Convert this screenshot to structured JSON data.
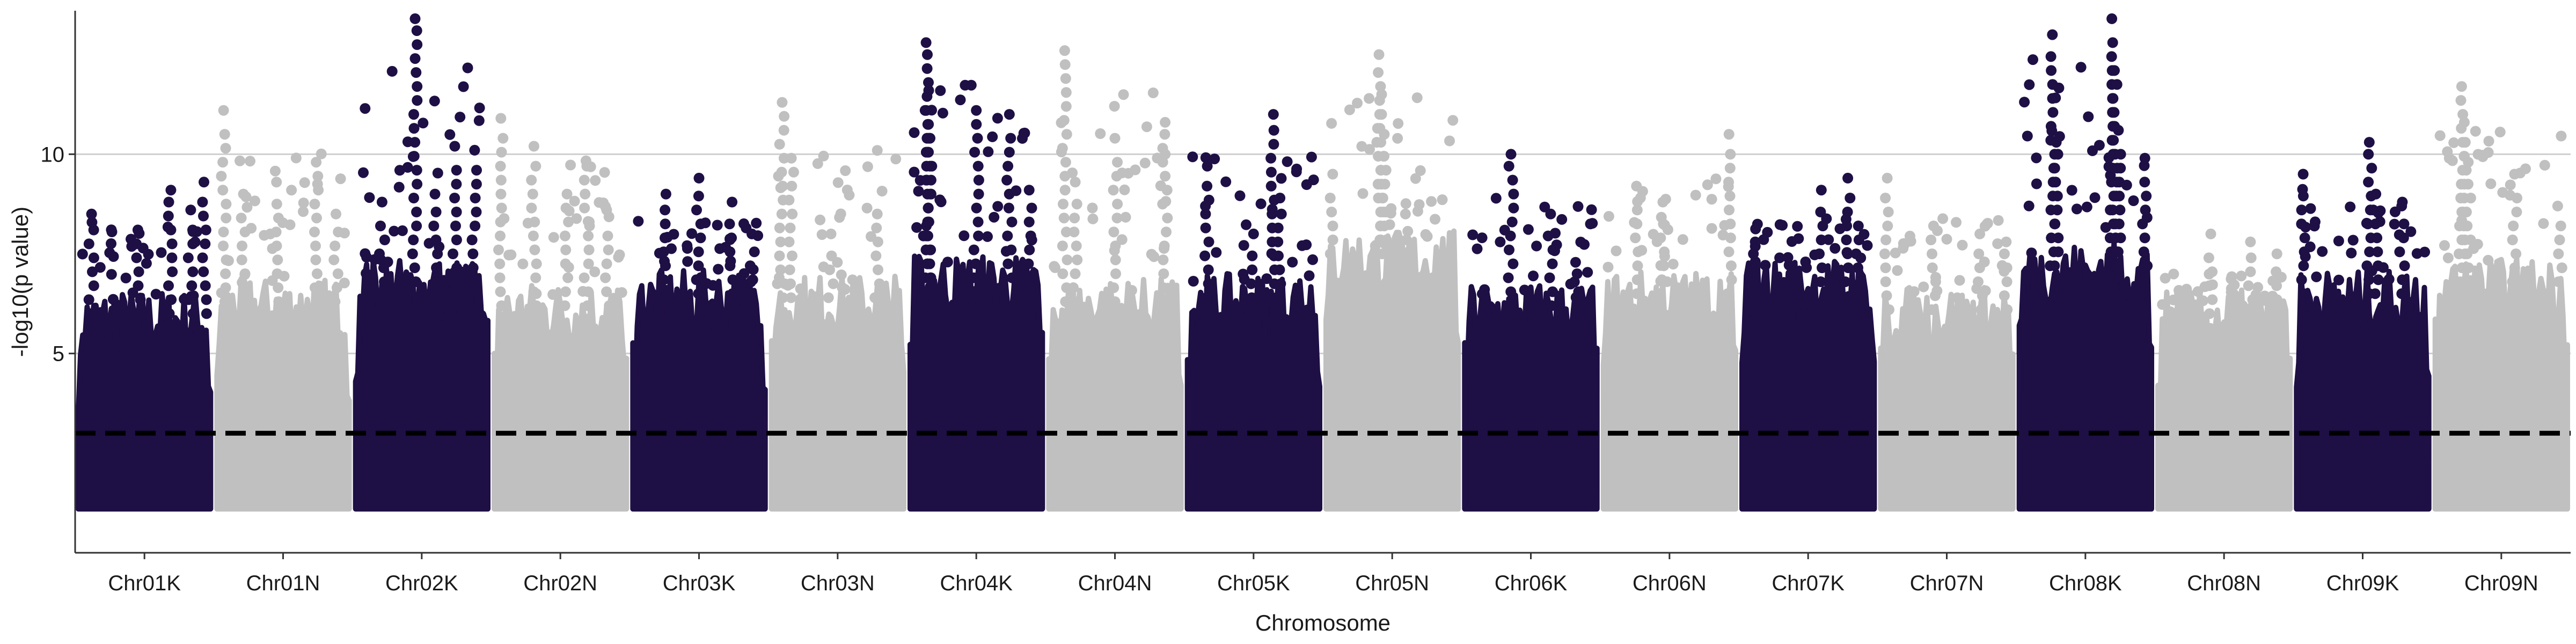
{
  "chart_data": {
    "type": "scatter",
    "xlabel": "Chromosome",
    "ylabel": "-log10(p value)",
    "ylim": [
      0,
      13.6
    ],
    "yticks": [
      5,
      10
    ],
    "categories": [
      "Chr01K",
      "Chr01N",
      "Chr02K",
      "Chr02N",
      "Chr03K",
      "Chr03N",
      "Chr04K",
      "Chr04N",
      "Chr05K",
      "Chr05N",
      "Chr06K",
      "Chr06N",
      "Chr07K",
      "Chr07N",
      "Chr08K",
      "Chr08N",
      "Chr09K",
      "Chr09N"
    ],
    "threshold": 3.0,
    "grid": "horizontal-major",
    "legend": "none",
    "colors": {
      "odd": "#1e0f45",
      "even": "#c0c0c0",
      "threshold": "#000000",
      "grid": "#cfcfcf",
      "axis": "#333333"
    },
    "floor": 1.1,
    "series": [
      {
        "category": "Chr01K",
        "max_y": 9.3,
        "dense_top": 6.0,
        "peaks": [
          {
            "x": 0.1,
            "y": 8.5
          },
          {
            "x": 0.45,
            "y": 8.1
          },
          {
            "x": 0.7,
            "y": 9.1
          },
          {
            "x": 0.85,
            "y": 8.6
          },
          {
            "x": 0.95,
            "y": 9.3
          }
        ]
      },
      {
        "category": "Chr01N",
        "max_y": 11.1,
        "dense_top": 6.3,
        "peaks": [
          {
            "x": 0.05,
            "y": 11.1
          },
          {
            "x": 0.2,
            "y": 9.0
          },
          {
            "x": 0.45,
            "y": 9.3
          },
          {
            "x": 0.75,
            "y": 9.8
          },
          {
            "x": 0.9,
            "y": 8.5
          }
        ]
      },
      {
        "category": "Chr02K",
        "max_y": 13.4,
        "dense_top": 6.8,
        "peaks": [
          {
            "x": 0.2,
            "y": 8.8
          },
          {
            "x": 0.45,
            "y": 13.4
          },
          {
            "x": 0.6,
            "y": 9.0
          },
          {
            "x": 0.75,
            "y": 10.2
          },
          {
            "x": 0.9,
            "y": 10.1
          }
        ]
      },
      {
        "category": "Chr02N",
        "max_y": 10.9,
        "dense_top": 6.2,
        "peaks": [
          {
            "x": 0.05,
            "y": 10.9
          },
          {
            "x": 0.3,
            "y": 10.2
          },
          {
            "x": 0.55,
            "y": 9.0
          },
          {
            "x": 0.7,
            "y": 9.7
          },
          {
            "x": 0.85,
            "y": 8.6
          }
        ]
      },
      {
        "category": "Chr03K",
        "max_y": 9.4,
        "dense_top": 6.5,
        "peaks": [
          {
            "x": 0.25,
            "y": 9.0
          },
          {
            "x": 0.5,
            "y": 9.4
          },
          {
            "x": 0.75,
            "y": 8.8
          },
          {
            "x": 0.9,
            "y": 8.0
          }
        ]
      },
      {
        "category": "Chr03N",
        "max_y": 11.3,
        "dense_top": 6.4,
        "peaks": [
          {
            "x": 0.08,
            "y": 11.3
          },
          {
            "x": 0.15,
            "y": 9.9
          },
          {
            "x": 0.45,
            "y": 8.0
          },
          {
            "x": 0.8,
            "y": 8.5
          }
        ]
      },
      {
        "category": "Chr04K",
        "max_y": 12.8,
        "dense_top": 6.9,
        "peaks": [
          {
            "x": 0.12,
            "y": 12.8
          },
          {
            "x": 0.14,
            "y": 11.6
          },
          {
            "x": 0.15,
            "y": 10.4
          },
          {
            "x": 0.5,
            "y": 11.1
          },
          {
            "x": 0.75,
            "y": 11.0
          },
          {
            "x": 0.9,
            "y": 9.1
          }
        ]
      },
      {
        "category": "Chr04N",
        "max_y": 12.6,
        "dense_top": 6.3,
        "peaks": [
          {
            "x": 0.12,
            "y": 12.6
          },
          {
            "x": 0.2,
            "y": 9.3
          },
          {
            "x": 0.5,
            "y": 10.4
          },
          {
            "x": 0.88,
            "y": 10.8
          }
        ]
      },
      {
        "category": "Chr05K",
        "max_y": 11.0,
        "dense_top": 6.4,
        "peaks": [
          {
            "x": 0.15,
            "y": 9.7
          },
          {
            "x": 0.5,
            "y": 8.0
          },
          {
            "x": 0.65,
            "y": 11.0
          },
          {
            "x": 0.7,
            "y": 8.9
          }
        ]
      },
      {
        "category": "Chr05N",
        "max_y": 12.5,
        "dense_top": 7.5,
        "peaks": [
          {
            "x": 0.05,
            "y": 9.5
          },
          {
            "x": 0.4,
            "y": 12.5
          },
          {
            "x": 0.42,
            "y": 11.5
          },
          {
            "x": 0.44,
            "y": 10.5
          },
          {
            "x": 0.6,
            "y": 8.5
          }
        ]
      },
      {
        "category": "Chr06K",
        "max_y": 10.0,
        "dense_top": 6.2,
        "peaks": [
          {
            "x": 0.35,
            "y": 10.0
          },
          {
            "x": 0.65,
            "y": 8.5
          },
          {
            "x": 0.85,
            "y": 7.0
          }
        ]
      },
      {
        "category": "Chr06N",
        "max_y": 10.5,
        "dense_top": 6.5,
        "peaks": [
          {
            "x": 0.25,
            "y": 9.2
          },
          {
            "x": 0.45,
            "y": 8.8
          },
          {
            "x": 0.95,
            "y": 10.5
          }
        ]
      },
      {
        "category": "Chr07K",
        "max_y": 9.4,
        "dense_top": 6.8,
        "peaks": [
          {
            "x": 0.1,
            "y": 7.8
          },
          {
            "x": 0.8,
            "y": 9.4
          },
          {
            "x": 0.6,
            "y": 9.1
          },
          {
            "x": 0.88,
            "y": 8.2
          }
        ]
      },
      {
        "category": "Chr07N",
        "max_y": 9.4,
        "dense_top": 6.1,
        "peaks": [
          {
            "x": 0.05,
            "y": 9.4
          },
          {
            "x": 0.4,
            "y": 8.2
          },
          {
            "x": 0.75,
            "y": 8.0
          },
          {
            "x": 0.95,
            "y": 7.8
          }
        ]
      },
      {
        "category": "Chr08K",
        "max_y": 13.4,
        "dense_top": 7.2,
        "peaks": [
          {
            "x": 0.25,
            "y": 13.0
          },
          {
            "x": 0.28,
            "y": 10.3
          },
          {
            "x": 0.7,
            "y": 13.4
          },
          {
            "x": 0.72,
            "y": 12.1
          },
          {
            "x": 0.75,
            "y": 10.6
          },
          {
            "x": 0.95,
            "y": 9.9
          }
        ]
      },
      {
        "category": "Chr08N",
        "max_y": 8.0,
        "dense_top": 6.0,
        "peaks": [
          {
            "x": 0.4,
            "y": 8.0
          },
          {
            "x": 0.7,
            "y": 7.8
          },
          {
            "x": 0.9,
            "y": 7.5
          }
        ]
      },
      {
        "category": "Chr09K",
        "max_y": 10.3,
        "dense_top": 6.5,
        "peaks": [
          {
            "x": 0.05,
            "y": 9.5
          },
          {
            "x": 0.55,
            "y": 10.3
          },
          {
            "x": 0.6,
            "y": 9.0
          },
          {
            "x": 0.8,
            "y": 8.8
          }
        ]
      },
      {
        "category": "Chr09N",
        "max_y": 11.7,
        "dense_top": 6.8,
        "peaks": [
          {
            "x": 0.2,
            "y": 11.7
          },
          {
            "x": 0.22,
            "y": 10.8
          },
          {
            "x": 0.25,
            "y": 9.8
          },
          {
            "x": 0.6,
            "y": 9.5
          },
          {
            "x": 0.95,
            "y": 8.2
          }
        ]
      }
    ]
  }
}
